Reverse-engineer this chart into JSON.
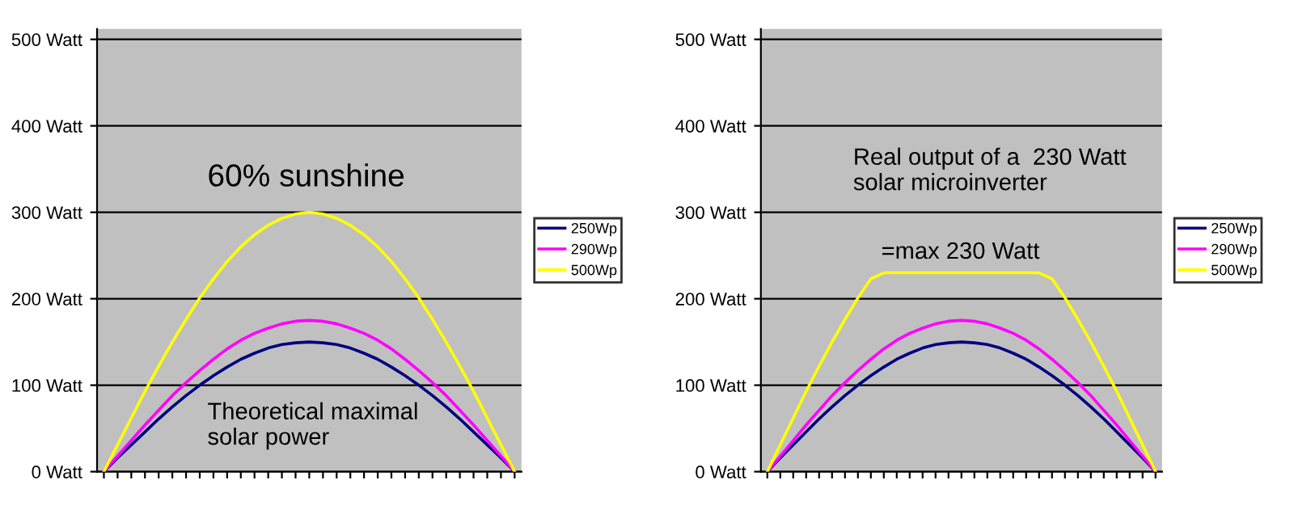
{
  "chart_data": [
    {
      "type": "line",
      "categories": [
        null,
        null,
        null,
        null,
        null,
        null,
        null,
        null,
        null,
        null,
        null,
        null,
        null,
        null,
        null,
        null,
        null,
        null,
        null,
        null,
        null,
        null,
        null,
        null,
        null,
        null,
        null,
        null,
        null,
        null,
        null
      ],
      "series": [
        {
          "name": "250Wp",
          "color": "#000080",
          "values": [
            0,
            16,
            31,
            46,
            61,
            75,
            88,
            100,
            111,
            121,
            130,
            137,
            143,
            147,
            149,
            150,
            149,
            147,
            143,
            137,
            130,
            121,
            111,
            100,
            88,
            75,
            61,
            46,
            31,
            16,
            0
          ]
        },
        {
          "name": "290Wp",
          "color": "#ff00ff",
          "values": [
            0,
            18,
            36,
            54,
            71,
            88,
            103,
            117,
            130,
            142,
            152,
            160,
            166,
            171,
            174,
            175,
            174,
            171,
            166,
            160,
            152,
            142,
            130,
            117,
            103,
            88,
            71,
            54,
            36,
            18,
            0
          ]
        },
        {
          "name": "500Wp",
          "color": "#ffff00",
          "values": [
            0,
            31,
            62,
            93,
            122,
            150,
            176,
            201,
            223,
            243,
            260,
            274,
            285,
            293,
            298,
            300,
            298,
            293,
            285,
            274,
            260,
            243,
            223,
            201,
            176,
            150,
            122,
            93,
            62,
            31,
            0
          ]
        }
      ],
      "ylim": [
        0,
        512
      ],
      "yticks": [
        {
          "value": 0,
          "label": "0 Watt"
        },
        {
          "value": 100,
          "label": "100 Watt"
        },
        {
          "value": 200,
          "label": "200 Watt"
        },
        {
          "value": 300,
          "label": "300 Watt"
        },
        {
          "value": 400,
          "label": "400 Watt"
        },
        {
          "value": 500,
          "label": "500 Watt"
        }
      ],
      "annotations": [
        "60% sunshine",
        "Theoretical maximal\nsolar power"
      ],
      "grid": "y",
      "legend": "right",
      "tick_labels": "y",
      "marker": "none",
      "line_style": "solid"
    },
    {
      "type": "line",
      "categories": [
        null,
        null,
        null,
        null,
        null,
        null,
        null,
        null,
        null,
        null,
        null,
        null,
        null,
        null,
        null,
        null,
        null,
        null,
        null,
        null,
        null,
        null,
        null,
        null,
        null,
        null,
        null,
        null,
        null,
        null,
        null
      ],
      "series": [
        {
          "name": "250Wp",
          "color": "#000080",
          "values": [
            0,
            16,
            31,
            46,
            61,
            75,
            88,
            100,
            111,
            121,
            130,
            137,
            143,
            147,
            149,
            150,
            149,
            147,
            143,
            137,
            130,
            121,
            111,
            100,
            88,
            75,
            61,
            46,
            31,
            16,
            0
          ]
        },
        {
          "name": "290Wp",
          "color": "#ff00ff",
          "values": [
            0,
            18,
            36,
            54,
            71,
            88,
            103,
            117,
            130,
            142,
            152,
            160,
            166,
            171,
            174,
            175,
            174,
            171,
            166,
            160,
            152,
            142,
            130,
            117,
            103,
            88,
            71,
            54,
            36,
            18,
            0
          ]
        },
        {
          "name": "500Wp",
          "color": "#ffff00",
          "values": [
            0,
            31,
            62,
            93,
            122,
            150,
            176,
            201,
            223,
            230,
            230,
            230,
            230,
            230,
            230,
            230,
            230,
            230,
            230,
            230,
            230,
            230,
            223,
            201,
            176,
            150,
            122,
            93,
            62,
            31,
            0
          ]
        }
      ],
      "ylim": [
        0,
        512
      ],
      "yticks": [
        {
          "value": 0,
          "label": "0 Watt"
        },
        {
          "value": 100,
          "label": "100 Watt"
        },
        {
          "value": 200,
          "label": "200 Watt"
        },
        {
          "value": 300,
          "label": "300 Watt"
        },
        {
          "value": 400,
          "label": "400 Watt"
        },
        {
          "value": 500,
          "label": "500 Watt"
        }
      ],
      "annotations": [
        "Real output of a  230 Watt\nsolar microinverter",
        "=max 230 Watt"
      ],
      "grid": "y",
      "legend": "right",
      "tick_labels": "y",
      "marker": "none",
      "line_style": "solid"
    }
  ]
}
